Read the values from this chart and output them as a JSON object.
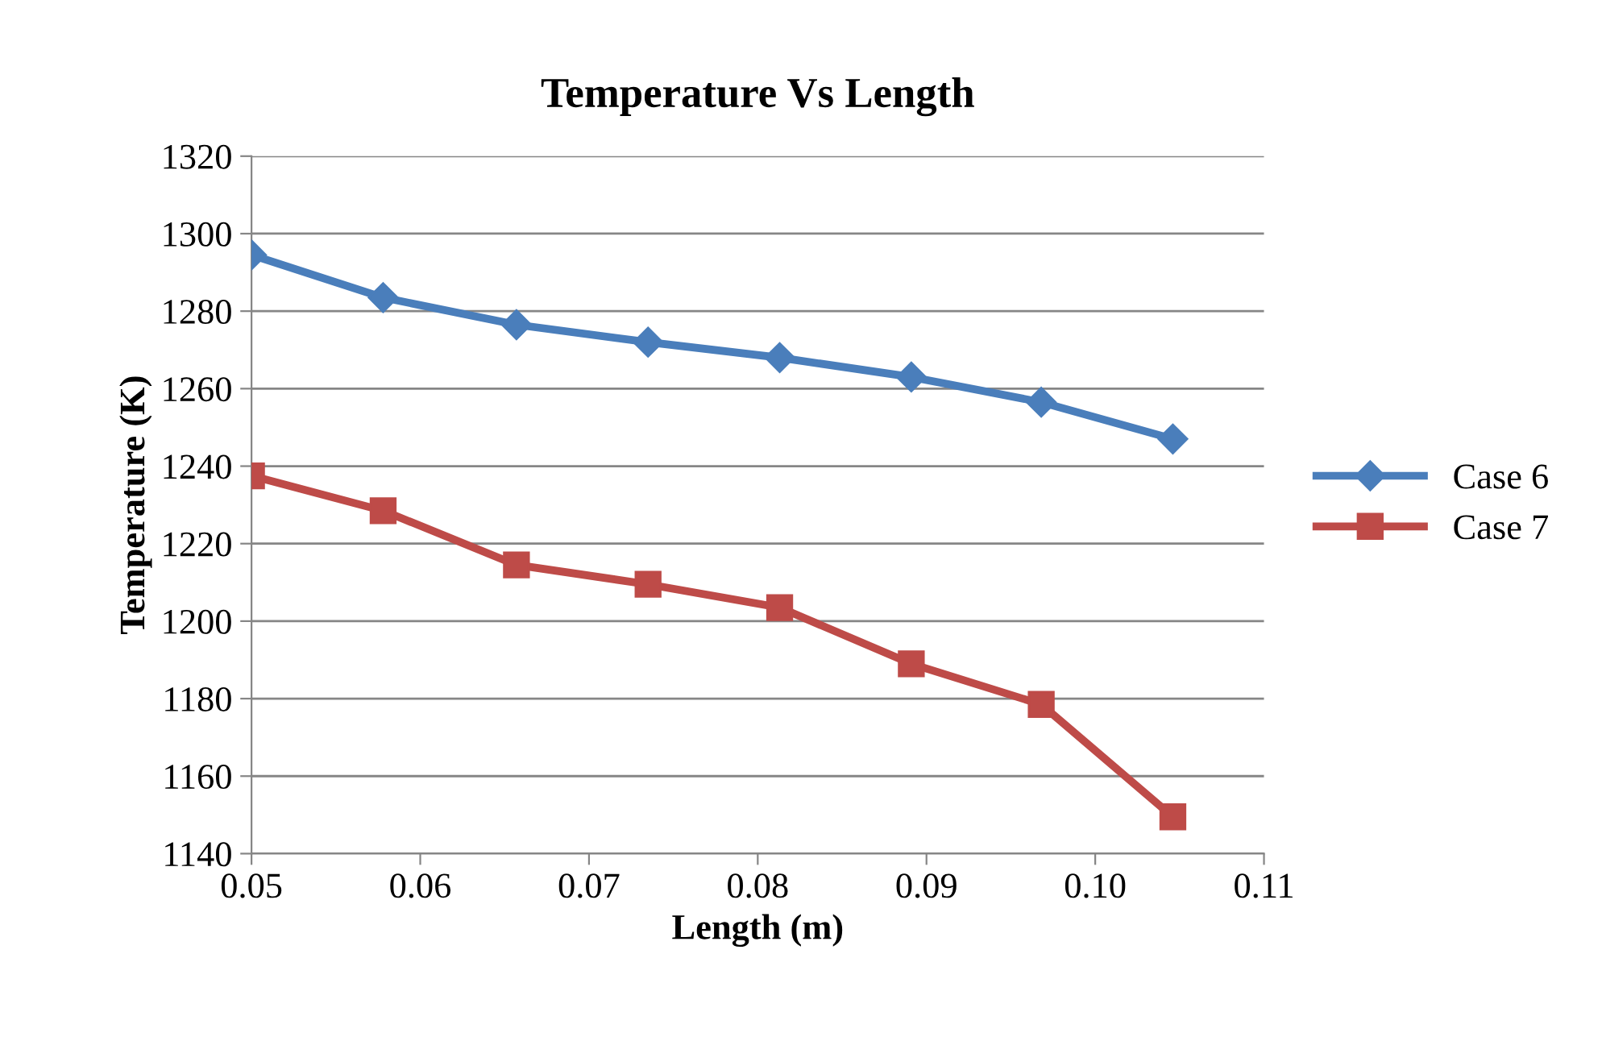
{
  "chart_data": {
    "type": "line",
    "title": "Temperature Vs Length",
    "xlabel": "Length (m)",
    "ylabel": "Temperature (K)",
    "xlim": [
      0.05,
      0.11
    ],
    "xticks": [
      {
        "value": 0.05,
        "label": "0.05"
      },
      {
        "value": 0.06,
        "label": "0.06"
      },
      {
        "value": 0.07,
        "label": "0.07"
      },
      {
        "value": 0.08,
        "label": "0.08"
      },
      {
        "value": 0.09,
        "label": "0.09"
      },
      {
        "value": 0.1,
        "label": "0.10"
      },
      {
        "value": 0.11,
        "label": "0.11"
      }
    ],
    "ylim": [
      1140,
      1320
    ],
    "yticks": [
      1140,
      1160,
      1180,
      1200,
      1220,
      1240,
      1260,
      1280,
      1300,
      1320
    ],
    "x": [
      0.05,
      0.0578,
      0.0657,
      0.0735,
      0.0813,
      0.0891,
      0.0968,
      0.1046
    ],
    "grid": "y",
    "legend": "right",
    "line_style": "solid",
    "series": [
      {
        "name": "Case 6",
        "color": "#4a7ebb",
        "marker": "diamond",
        "values": [
          1294.5,
          1283.5,
          1276.5,
          1272,
          1268,
          1263,
          1256.5,
          1247
        ]
      },
      {
        "name": "Case 7",
        "color": "#be4b48",
        "marker": "square",
        "values": [
          1237.5,
          1228.5,
          1214.5,
          1209.5,
          1203.5,
          1189,
          1178.5,
          1149.5
        ]
      }
    ]
  }
}
